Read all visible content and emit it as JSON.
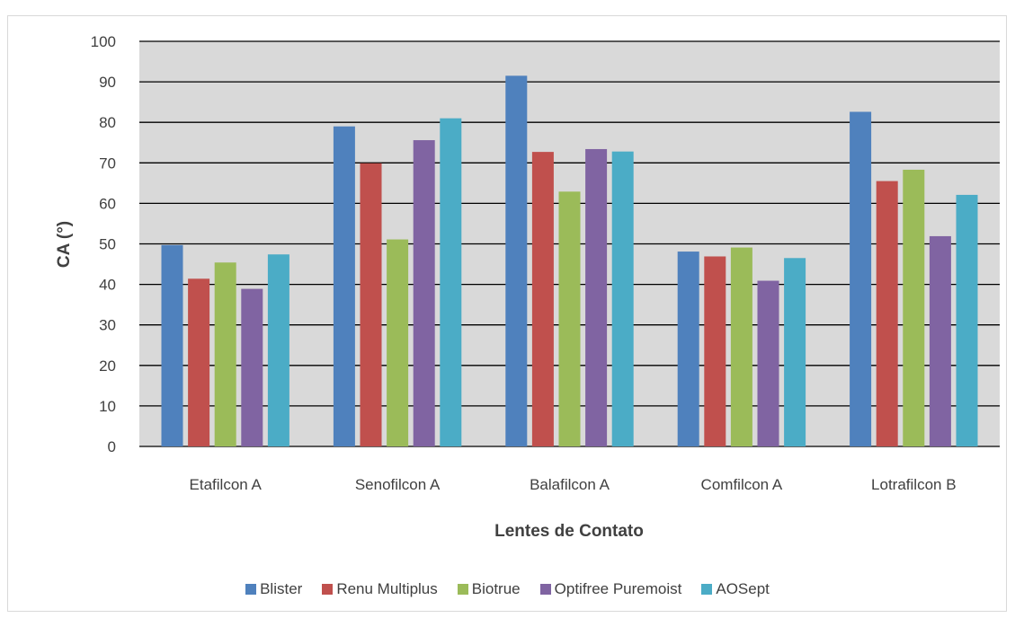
{
  "chart_data": {
    "type": "bar",
    "title": "",
    "xlabel": "Lentes de Contato",
    "ylabel": "CA (°)",
    "ylim": [
      0,
      100
    ],
    "yticks": [
      0,
      10,
      20,
      30,
      40,
      50,
      60,
      70,
      80,
      90,
      100
    ],
    "grid": true,
    "legend_position": "bottom",
    "plot_background": "#d9d9d9",
    "categories": [
      "Etafilcon A",
      "Senofilcon A",
      "Balafilcon A",
      "Comfilcon A",
      "Lotrafilcon B"
    ],
    "series": [
      {
        "name": "Blister",
        "color": "#4f81bd",
        "values": [
          49.7,
          79.0,
          91.5,
          48.1,
          82.6
        ]
      },
      {
        "name": "Renu Multiplus",
        "color": "#c0504d",
        "values": [
          41.4,
          69.9,
          72.7,
          46.9,
          65.5
        ]
      },
      {
        "name": "Biotrue",
        "color": "#9bbb59",
        "values": [
          45.4,
          51.1,
          62.9,
          49.1,
          68.3
        ]
      },
      {
        "name": "Optifree Puremoist",
        "color": "#8064a2",
        "values": [
          38.9,
          75.6,
          73.4,
          40.9,
          51.9
        ]
      },
      {
        "name": "AOSept",
        "color": "#4bacc6",
        "values": [
          47.4,
          81.0,
          72.8,
          46.5,
          62.1
        ]
      }
    ]
  }
}
